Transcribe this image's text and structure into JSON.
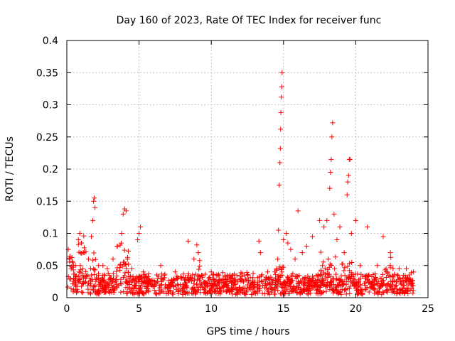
{
  "chart_data": {
    "type": "scatter",
    "title": "Day 160 of 2023, Rate Of TEC Index for receiver func",
    "xlabel": "GPS time / hours",
    "ylabel": "ROTI / TECUs",
    "xlim": [
      0,
      25
    ],
    "ylim": [
      0,
      0.4
    ],
    "xticks": [
      0,
      5,
      10,
      15,
      20,
      25
    ],
    "yticks": [
      0,
      0.05,
      0.1,
      0.15,
      0.2,
      0.25,
      0.3,
      0.35,
      0.4
    ],
    "xtick_labels": [
      "0",
      "5",
      "10",
      "15",
      "20",
      "25"
    ],
    "ytick_labels": [
      "0",
      "0.05",
      "0.1",
      "0.15",
      "0.2",
      "0.25",
      "0.3",
      "0.35",
      "0.4"
    ],
    "grid": true,
    "marker": "+",
    "color": "#ff0000",
    "series": [
      {
        "points": [
          [
            0.1,
            0.075
          ],
          [
            0.2,
            0.06
          ],
          [
            0.3,
            0.045
          ],
          [
            0.4,
            0.055
          ],
          [
            0.6,
            0.05
          ],
          [
            0.8,
            0.09
          ],
          [
            0.9,
            0.1
          ],
          [
            1.0,
            0.085
          ],
          [
            1.2,
            0.07
          ],
          [
            1.5,
            0.06
          ],
          [
            1.7,
            0.095
          ],
          [
            1.8,
            0.12
          ],
          [
            1.85,
            0.15
          ],
          [
            1.9,
            0.155
          ],
          [
            1.95,
            0.14
          ],
          [
            2.2,
            0.05
          ],
          [
            2.5,
            0.05
          ],
          [
            2.8,
            0.045
          ],
          [
            3.2,
            0.06
          ],
          [
            3.5,
            0.08
          ],
          [
            3.8,
            0.1
          ],
          [
            3.9,
            0.13
          ],
          [
            4.0,
            0.138
          ],
          [
            4.1,
            0.135
          ],
          [
            4.2,
            0.06
          ],
          [
            4.5,
            0.045
          ],
          [
            4.9,
            0.09
          ],
          [
            5.0,
            0.1
          ],
          [
            5.1,
            0.11
          ],
          [
            5.3,
            0.04
          ],
          [
            6.5,
            0.05
          ],
          [
            7.5,
            0.04
          ],
          [
            8.4,
            0.088
          ],
          [
            8.8,
            0.06
          ],
          [
            9.0,
            0.082
          ],
          [
            9.1,
            0.07
          ],
          [
            10.0,
            0.04
          ],
          [
            11.5,
            0.035
          ],
          [
            12.5,
            0.035
          ],
          [
            13.3,
            0.088
          ],
          [
            13.4,
            0.07
          ],
          [
            13.9,
            0.04
          ],
          [
            14.4,
            0.04
          ],
          [
            14.6,
            0.06
          ],
          [
            14.65,
            0.105
          ],
          [
            14.7,
            0.175
          ],
          [
            14.75,
            0.21
          ],
          [
            14.78,
            0.232
          ],
          [
            14.8,
            0.262
          ],
          [
            14.82,
            0.288
          ],
          [
            14.85,
            0.312
          ],
          [
            14.88,
            0.328
          ],
          [
            14.9,
            0.35
          ],
          [
            15.0,
            0.09
          ],
          [
            15.2,
            0.1
          ],
          [
            15.3,
            0.085
          ],
          [
            15.5,
            0.075
          ],
          [
            15.8,
            0.06
          ],
          [
            16.0,
            0.135
          ],
          [
            16.3,
            0.07
          ],
          [
            16.6,
            0.08
          ],
          [
            17.0,
            0.095
          ],
          [
            17.5,
            0.12
          ],
          [
            17.8,
            0.11
          ],
          [
            18.0,
            0.12
          ],
          [
            18.2,
            0.17
          ],
          [
            18.25,
            0.195
          ],
          [
            18.3,
            0.215
          ],
          [
            18.35,
            0.25
          ],
          [
            18.4,
            0.272
          ],
          [
            18.5,
            0.13
          ],
          [
            18.7,
            0.09
          ],
          [
            18.9,
            0.11
          ],
          [
            19.2,
            0.07
          ],
          [
            19.4,
            0.16
          ],
          [
            19.45,
            0.18
          ],
          [
            19.5,
            0.19
          ],
          [
            19.55,
            0.215
          ],
          [
            19.6,
            0.215
          ],
          [
            19.7,
            0.1
          ],
          [
            20.0,
            0.12
          ],
          [
            20.3,
            0.05
          ],
          [
            20.8,
            0.11
          ],
          [
            21.5,
            0.05
          ],
          [
            21.9,
            0.095
          ],
          [
            22.4,
            0.07
          ],
          [
            23.0,
            0.045
          ],
          [
            23.5,
            0.045
          ],
          [
            24.0,
            0.04
          ]
        ]
      }
    ]
  }
}
